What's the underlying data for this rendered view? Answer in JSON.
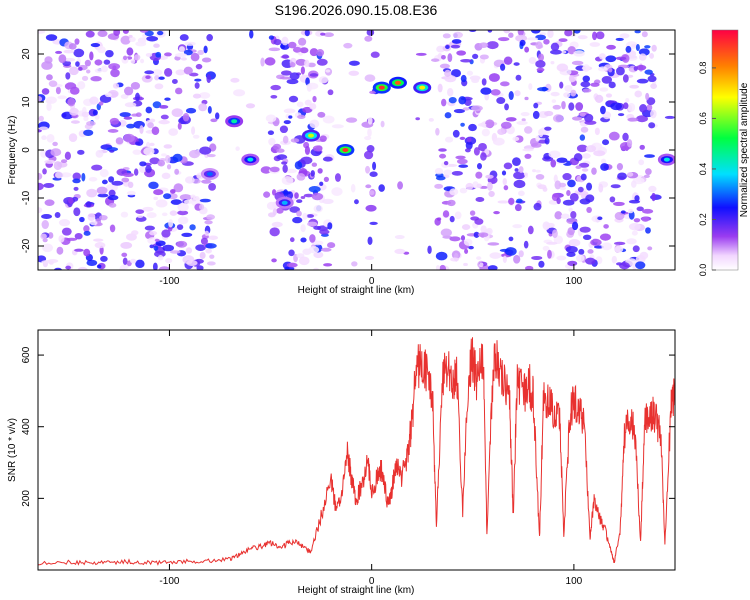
{
  "title": "S196.2026.090.15.08.E36",
  "colorbar": {
    "label": "Normalized spectral amplitude",
    "ticks": [
      "0.0",
      "0.2",
      "0.4",
      "0.6",
      "0.8"
    ],
    "tick_values": [
      0.0,
      0.2,
      0.4,
      0.6,
      0.8
    ],
    "range": [
      0.0,
      0.95
    ]
  },
  "chart_data": [
    {
      "type": "heatmap",
      "title": "S196.2026.090.15.08.E36",
      "xlabel": "Height of straight line (km)",
      "ylabel": "Frequency (Hz)",
      "xlim": [
        -165,
        150
      ],
      "ylim": [
        -25,
        25
      ],
      "xticks": [
        -100,
        0,
        100
      ],
      "xtick_labels": [
        "-100",
        "0",
        "100"
      ],
      "yticks": [
        -20,
        -10,
        0,
        10,
        20
      ],
      "ytick_labels": [
        "-20",
        "-10",
        "0",
        "10",
        "20"
      ],
      "features": [
        {
          "x": 5,
          "y": 13,
          "amplitude": 0.9
        },
        {
          "x": 13,
          "y": 14,
          "amplitude": 0.85
        },
        {
          "x": 25,
          "y": 13,
          "amplitude": 0.7
        },
        {
          "x": -30,
          "y": 3,
          "amplitude": 0.65
        },
        {
          "x": -13,
          "y": 0,
          "amplitude": 0.9
        },
        {
          "x": -43,
          "y": -11,
          "amplitude": 0.35
        },
        {
          "x": -60,
          "y": -2,
          "amplitude": 0.4
        },
        {
          "x": -68,
          "y": 6,
          "amplitude": 0.45
        },
        {
          "x": -80,
          "y": -5,
          "amplitude": 0.3
        },
        {
          "x": 146,
          "y": -2,
          "amplitude": 0.4
        }
      ]
    },
    {
      "type": "line",
      "title": "",
      "xlabel": "Height of straight line (km)",
      "ylabel": "SNR (10 * v/v)",
      "xlim": [
        -165,
        150
      ],
      "ylim": [
        0,
        670
      ],
      "xticks": [
        -100,
        0,
        100
      ],
      "xtick_labels": [
        "-100",
        "0",
        "100"
      ],
      "yticks": [
        200,
        400,
        600
      ],
      "ytick_labels": [
        "200",
        "400",
        "600"
      ],
      "series": [
        {
          "name": "SNR",
          "color": "#e8312f",
          "x": [
            -165,
            -150,
            -140,
            -130,
            -120,
            -110,
            -100,
            -90,
            -80,
            -70,
            -65,
            -60,
            -55,
            -50,
            -45,
            -40,
            -35,
            -30,
            -25,
            -20,
            -18,
            -15,
            -12,
            -10,
            -8,
            -5,
            -2,
            0,
            3,
            5,
            8,
            10,
            12,
            15,
            18,
            20,
            22,
            25,
            28,
            30,
            32,
            35,
            38,
            40,
            42,
            45,
            48,
            50,
            52,
            55,
            57,
            60,
            62,
            65,
            68,
            70,
            72,
            75,
            78,
            80,
            83,
            85,
            88,
            90,
            93,
            95,
            98,
            100,
            103,
            105,
            108,
            110,
            113,
            115,
            118,
            120,
            123,
            125,
            128,
            130,
            133,
            135,
            138,
            140,
            143,
            145,
            148,
            150
          ],
          "values": [
            20,
            22,
            20,
            21,
            23,
            20,
            22,
            24,
            26,
            30,
            45,
            60,
            65,
            75,
            60,
            80,
            70,
            50,
            150,
            250,
            180,
            210,
            320,
            260,
            190,
            240,
            300,
            220,
            260,
            280,
            180,
            220,
            300,
            260,
            330,
            420,
            560,
            580,
            530,
            500,
            120,
            540,
            560,
            520,
            560,
            160,
            570,
            590,
            520,
            620,
            100,
            560,
            600,
            520,
            500,
            150,
            530,
            490,
            520,
            480,
            90,
            480,
            470,
            440,
            420,
            100,
            430,
            470,
            460,
            410,
            90,
            200,
            140,
            120,
            60,
            20,
            120,
            380,
            420,
            400,
            80,
            410,
            440,
            430,
            380,
            70,
            460,
            500
          ]
        }
      ]
    }
  ]
}
